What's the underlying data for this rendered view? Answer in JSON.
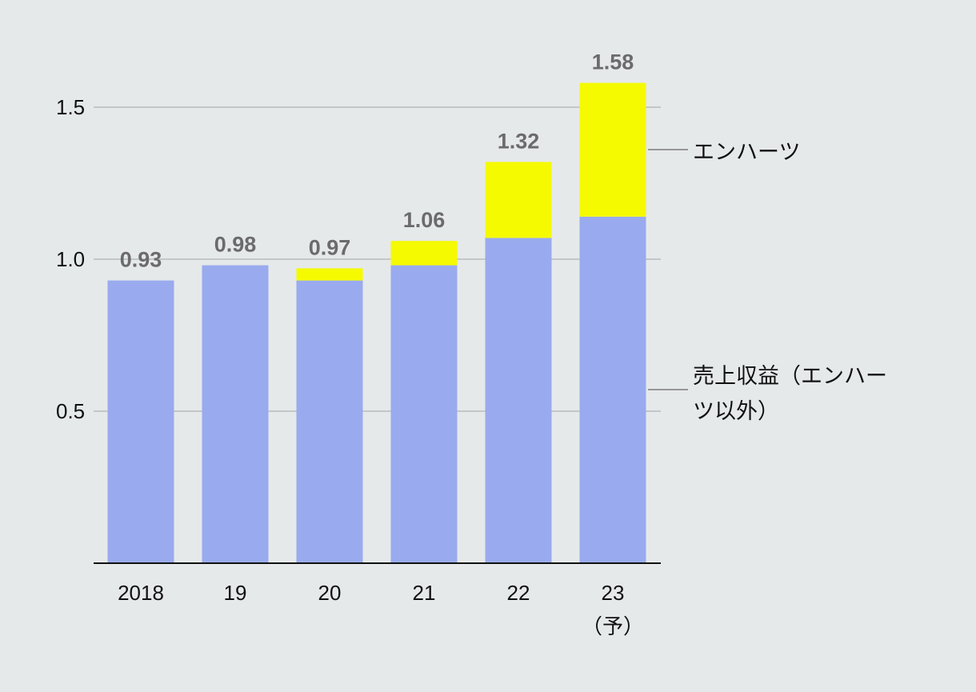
{
  "chart_data": {
    "type": "bar",
    "stacked": true,
    "categories": [
      "2018",
      "19",
      "20",
      "21",
      "22",
      "23"
    ],
    "category_sublabels": [
      "",
      "",
      "",
      "",
      "",
      "（予）"
    ],
    "series": [
      {
        "name": "売上収益（エンハーツ以外）",
        "name_lines": [
          "売上収益（エンハー",
          "ツ以外）"
        ],
        "values": [
          0.93,
          0.98,
          0.93,
          0.98,
          1.07,
          1.14
        ],
        "color": "#99abee"
      },
      {
        "name": "エンハーツ",
        "name_lines": [
          "エンハーツ"
        ],
        "values": [
          0,
          0,
          0.04,
          0.08,
          0.25,
          0.44
        ],
        "color": "#f5fa00"
      }
    ],
    "totals": [
      "0.93",
      "0.98",
      "0.97",
      "1.06",
      "1.32",
      "1.58"
    ],
    "yticks": [
      "0.5",
      "1.0",
      "1.5"
    ],
    "ylim": [
      0,
      1.6
    ],
    "grid": true,
    "legend_placement": "right"
  },
  "colors": {
    "background": "#e6e9ea",
    "grid": "#b9bcbe",
    "axis": "#111111",
    "total_label": "#6b6b6b",
    "legend_line": "#8c8c8c"
  }
}
